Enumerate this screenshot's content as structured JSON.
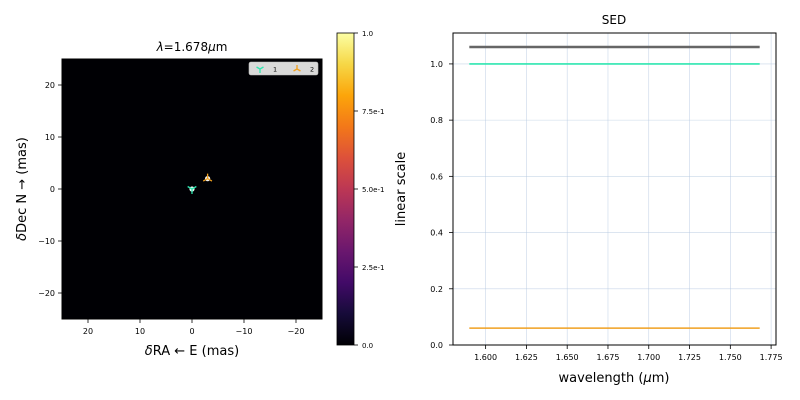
{
  "chart_data": [
    {
      "type": "scatter",
      "title": "λ=1.678μm",
      "title_prefix": "λ",
      "title_value": "=1.678",
      "title_unit_symbol": "μ",
      "title_unit": "m",
      "xlabel_prefix": "δ",
      "xlabel": "RA ← E (mas)",
      "ylabel_prefix": "δ",
      "ylabel": "Dec N → (mas)",
      "xlim": [
        25,
        -25
      ],
      "ylim": [
        -25,
        25
      ],
      "xticks": [
        20,
        10,
        0,
        -10,
        -20
      ],
      "xtick_labels": [
        "20",
        "10",
        "0",
        "−10",
        "−20"
      ],
      "yticks": [
        20,
        10,
        0,
        -10,
        -20
      ],
      "ytick_labels": [
        "20",
        "10",
        "0",
        "−10",
        "−20"
      ],
      "background": "#000004",
      "series": [
        {
          "name": "1",
          "marker": "tri_down",
          "color": "#2ee6b0",
          "x": [
            0
          ],
          "y": [
            0
          ]
        },
        {
          "name": "2",
          "marker": "tri_up",
          "color": "#f0a020",
          "x": [
            -3
          ],
          "y": [
            2
          ]
        }
      ],
      "legend_placement": "top-right",
      "colorbar": {
        "colormap": "inferno",
        "range": [
          0,
          1
        ],
        "ticks": [
          0,
          0.25,
          0.5,
          0.75,
          1.0
        ],
        "tick_labels": [
          "0.0",
          "2.5e-1",
          "5.0e-1",
          "7.5e-1",
          "1.0"
        ],
        "label": "linear scale"
      }
    },
    {
      "type": "line",
      "title": "SED",
      "xlabel": "wavelength (μm)",
      "xlabel_text": "wavelength (",
      "xlabel_symbol": "μ",
      "xlabel_unit": "m)",
      "ylabel": "",
      "xlim": [
        1.58,
        1.778
      ],
      "ylim": [
        0,
        1.11
      ],
      "xticks": [
        1.6,
        1.625,
        1.65,
        1.675,
        1.7,
        1.725,
        1.75,
        1.775
      ],
      "xtick_labels": [
        "1.600",
        "1.625",
        "1.650",
        "1.675",
        "1.700",
        "1.725",
        "1.750",
        "1.775"
      ],
      "yticks": [
        0,
        0.2,
        0.4,
        0.6,
        0.8,
        1.0
      ],
      "ytick_labels": [
        "0.0",
        "0.2",
        "0.4",
        "0.6",
        "0.8",
        "1.0"
      ],
      "grid": true,
      "series": [
        {
          "color": "#666666",
          "x": [
            1.59,
            1.768
          ],
          "y": [
            1.06,
            1.06
          ]
        },
        {
          "color": "#2ee6b0",
          "x": [
            1.59,
            1.768
          ],
          "y": [
            1.0,
            1.0
          ]
        },
        {
          "color": "#f0a020",
          "x": [
            1.59,
            1.768
          ],
          "y": [
            0.06,
            0.06
          ]
        }
      ]
    }
  ]
}
